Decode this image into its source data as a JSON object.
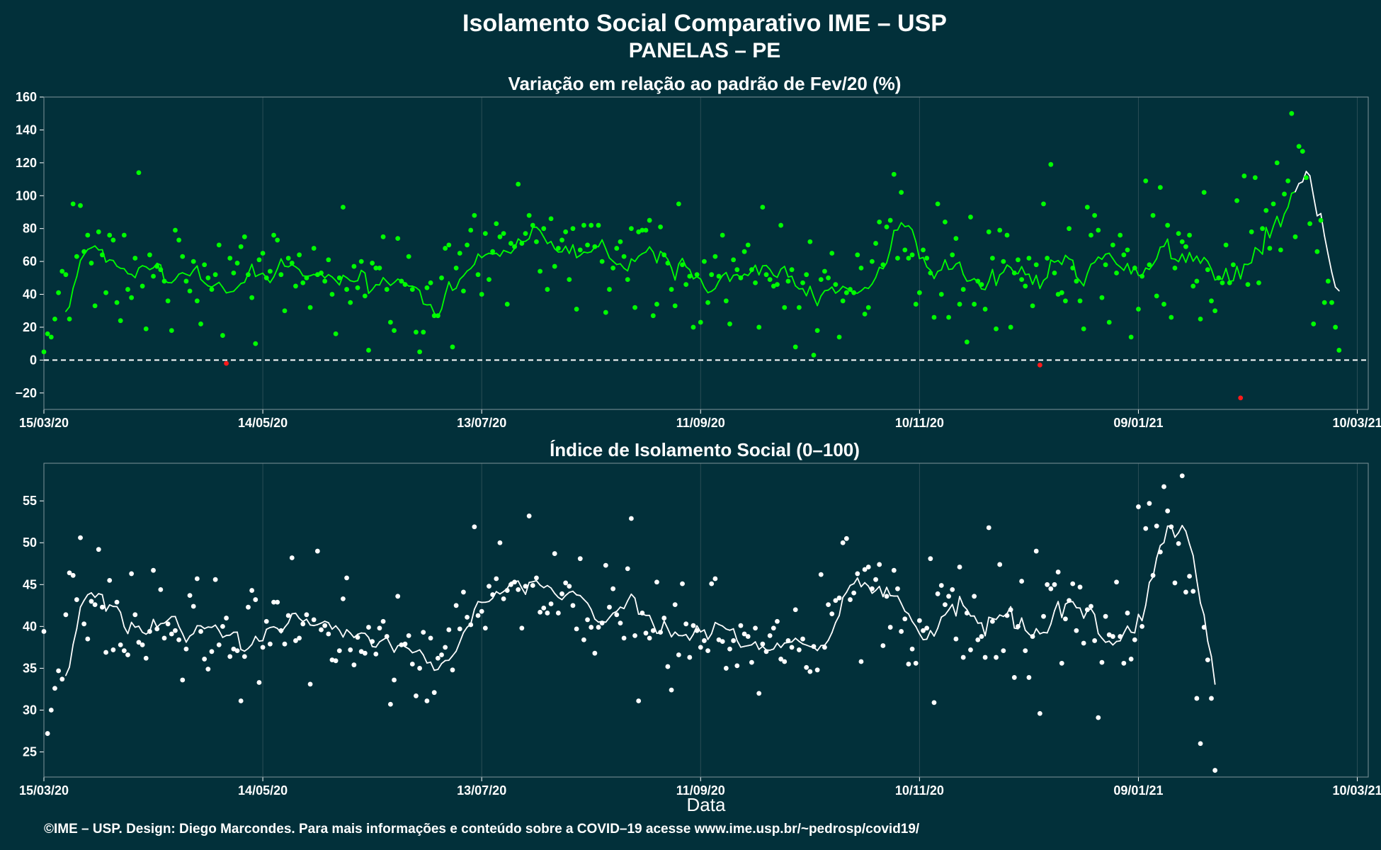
{
  "title": "Isolamento Social Comparativo IME – USP",
  "subtitle": "PANELAS – PE",
  "footer": "©IME – USP. Design: Diego Marcondes. Para mais informações e conteúdo sobre a COVID–19 acesse www.ime.usp.br/~pedrosp/covid19/",
  "colors": {
    "background": "#02303a",
    "positive_points": "#00ff00",
    "negative_points": "#ff1a1a",
    "index_points": "#ffffff",
    "text": "#ffffff",
    "zero_line": "#ffffff"
  },
  "chart_data": [
    {
      "type": "scatter",
      "title": "Variação em relação ao padrão de Fev/20 (%)",
      "xlabel": "",
      "ylabel": "",
      "x_tick_labels": [
        "15/03/20",
        "14/05/20",
        "13/07/20",
        "11/09/20",
        "10/11/20",
        "09/01/21",
        "10/03/21"
      ],
      "x_tick_days": [
        0,
        60,
        120,
        180,
        240,
        300,
        360
      ],
      "ylim": [
        -30,
        160
      ],
      "y_ticks": [
        -20,
        0,
        20,
        40,
        60,
        80,
        100,
        120,
        140,
        160
      ],
      "reference_line": {
        "y": 0,
        "style": "dashed"
      },
      "grid": true,
      "x_range_days": [
        0,
        363
      ],
      "series": [
        {
          "values": [
            5,
            16,
            14,
            25,
            41,
            54,
            52,
            25,
            95,
            63,
            94,
            66,
            76,
            59,
            33,
            78,
            64,
            41,
            76,
            73,
            35,
            24,
            76,
            43,
            38,
            62,
            114,
            45,
            19,
            64,
            51,
            57,
            55,
            48,
            36,
            18,
            79,
            73,
            63,
            48,
            42,
            60,
            36,
            22,
            58,
            50,
            43,
            52,
            70,
            15,
            -2,
            62,
            53,
            59,
            69,
            75,
            52,
            38,
            10,
            61,
            65,
            50,
            54,
            76,
            73,
            52,
            30,
            62,
            59,
            45,
            64,
            47,
            50,
            32,
            68,
            52,
            53,
            48,
            61,
            40,
            16,
            50,
            93,
            43,
            35,
            57,
            44,
            60,
            39,
            6,
            59,
            56,
            56,
            75,
            43,
            23,
            18,
            74,
            48,
            46,
            63,
            43,
            17,
            5,
            17,
            44,
            47,
            27,
            27,
            50,
            68,
            70,
            8,
            56,
            65,
            42,
            70,
            79,
            88,
            52,
            40,
            77,
            49,
            66,
            83,
            75,
            77,
            34,
            71,
            69,
            107,
            71,
            77,
            88,
            82,
            72,
            54,
            80,
            43,
            86,
            57,
            68,
            73,
            78,
            49,
            80,
            31,
            67,
            82,
            70,
            82,
            69,
            82,
            60,
            29,
            43,
            56,
            68,
            72,
            63,
            49,
            80,
            32,
            78,
            79,
            79,
            85,
            27,
            34,
            81,
            64,
            59,
            43,
            33,
            95,
            58,
            46,
            51,
            20,
            52,
            23,
            60,
            35,
            52,
            63,
            51,
            76,
            36,
            22,
            61,
            55,
            50,
            66,
            70,
            55,
            47,
            20,
            93,
            52,
            49,
            45,
            46,
            82,
            32,
            48,
            55,
            8,
            32,
            47,
            52,
            72,
            3,
            18,
            49,
            54,
            50,
            65,
            46,
            14,
            36,
            41,
            43,
            41,
            64,
            56,
            28,
            32,
            60,
            71,
            84,
            58,
            81,
            85,
            113,
            62,
            102,
            67,
            62,
            64,
            34,
            41,
            67,
            62,
            53,
            26,
            95,
            40,
            84,
            26,
            64,
            74,
            34,
            43,
            11,
            87,
            34,
            48,
            46,
            31,
            78,
            62,
            19,
            79,
            60,
            76,
            20,
            53,
            61,
            49,
            45,
            62,
            33,
            58,
            -3,
            95,
            62,
            119,
            53,
            40,
            41,
            36,
            80,
            56,
            48,
            36,
            19,
            93,
            76,
            88,
            79,
            38,
            58,
            23,
            70,
            53,
            76,
            64,
            67,
            14,
            56,
            31,
            51,
            109,
            58,
            88,
            39,
            105,
            34,
            82,
            26,
            56,
            77,
            72,
            69,
            76,
            45,
            48,
            25,
            102,
            55,
            36,
            30,
            50,
            47,
            70,
            47,
            58,
            97,
            -23,
            112,
            46,
            78,
            111,
            47,
            80,
            91,
            68,
            95,
            120,
            67,
            101,
            109,
            150,
            75,
            130,
            127,
            111,
            83,
            22,
            66,
            85,
            35,
            48,
            35,
            20,
            6
          ]
        }
      ]
    },
    {
      "type": "scatter",
      "title": "Índice de Isolamento Social (0–100)",
      "xlabel": "Data",
      "ylabel": "",
      "x_tick_labels": [
        "15/03/20",
        "14/05/20",
        "13/07/20",
        "11/09/20",
        "10/11/20",
        "09/01/21",
        "10/03/21"
      ],
      "x_tick_days": [
        0,
        60,
        120,
        180,
        240,
        300,
        360
      ],
      "ylim": [
        22,
        59.5
      ],
      "y_ticks": [
        25,
        30,
        35,
        40,
        45,
        50,
        55
      ],
      "grid": true,
      "x_range_days": [
        0,
        363
      ],
      "series": [
        {
          "values": [
            39.4,
            27.2,
            30.0,
            32.6,
            34.7,
            33.7,
            41.4,
            46.4,
            46.1,
            43.2,
            50.6,
            40.3,
            38.5,
            43.0,
            42.6,
            49.2,
            42.3,
            36.9,
            45.5,
            37.2,
            42.9,
            37.8,
            37.1,
            36.6,
            46.3,
            41.4,
            38.1,
            37.8,
            36.2,
            39.4,
            46.7,
            39.7,
            44.4,
            38.6,
            40.3,
            39.1,
            39.5,
            38.4,
            33.6,
            37.3,
            43.7,
            42.4,
            45.7,
            39.4,
            36.1,
            34.9,
            37.0,
            45.6,
            37.8,
            40.0,
            41.0,
            36.4,
            37.3,
            37.1,
            31.1,
            36.4,
            42.3,
            44.3,
            43.2,
            33.3,
            37.5,
            40.6,
            37.9,
            42.9,
            42.9,
            39.5,
            37.9,
            41.3,
            48.2,
            38.3,
            38.6,
            40.3,
            41.4,
            33.1,
            40.8,
            49.0,
            39.6,
            40.1,
            39.1,
            36.0,
            35.9,
            37.1,
            43.3,
            45.8,
            37.2,
            35.4,
            38.7,
            37.0,
            36.8,
            39.9,
            38.2,
            36.7,
            39.8,
            40.6,
            38.8,
            30.7,
            33.6,
            43.6,
            37.8,
            37.9,
            38.9,
            35.5,
            31.7,
            35.0,
            39.3,
            31.1,
            38.6,
            32.1,
            36.2,
            36.6,
            37.5,
            39.6,
            34.8,
            42.5,
            39.7,
            44.1,
            41.1,
            40.2,
            51.9,
            41.3,
            41.8,
            39.8,
            44.8,
            43.8,
            45.7,
            50.0,
            43.3,
            44.3,
            45.0,
            45.3,
            44.4,
            39.8,
            44.8,
            53.2,
            44.9,
            45.8,
            41.7,
            42.2,
            41.6,
            42.7,
            48.7,
            41.6,
            43.9,
            45.2,
            44.8,
            42.5,
            39.7,
            48.1,
            38.4,
            40.8,
            39.9,
            36.8,
            39.9,
            40.4,
            47.3,
            42.3,
            44.5,
            41.4,
            40.4,
            38.6,
            46.9,
            52.9,
            38.9,
            31.1,
            41.6,
            39.2,
            38.6,
            39.5,
            45.3,
            39.3,
            41.0,
            35.2,
            32.4,
            42.6,
            36.6,
            45.1,
            40.3,
            36.3,
            40.1,
            39.5,
            37.5,
            38.3,
            37.1,
            45.1,
            45.7,
            38.4,
            38.2,
            35.0,
            37.3,
            38.3,
            35.3,
            40.1,
            39.1,
            38.8,
            35.7,
            39.8,
            32.0,
            37.9,
            37.0,
            38.9,
            39.8,
            40.6,
            36.1,
            35.8,
            38.3,
            37.5,
            42.0,
            37.2,
            38.5,
            35.1,
            34.6,
            37.6,
            34.8,
            46.2,
            37.5,
            42.6,
            41.5,
            43.1,
            43.4,
            50.0,
            50.5,
            43.2,
            44.0,
            46.3,
            35.8,
            46.8,
            47.1,
            44.5,
            45.6,
            47.4,
            37.7,
            43.6,
            39.9,
            46.7,
            44.5,
            39.4,
            40.9,
            35.5,
            37.3,
            35.6,
            40.7,
            39.5,
            39.8,
            48.1,
            30.9,
            43.9,
            44.9,
            42.6,
            43.6,
            44.4,
            38.5,
            47.1,
            36.3,
            41.6,
            37.2,
            43.6,
            38.4,
            38.8,
            36.3,
            51.8,
            40.6,
            36.3,
            47.4,
            37.1,
            41.3,
            42.0,
            33.9,
            40.0,
            45.4,
            37.1,
            33.9,
            38.8,
            49.0,
            29.6,
            41.2,
            45.0,
            44.5,
            45.0,
            46.5,
            35.6,
            40.9,
            43.1,
            45.1,
            39.5,
            44.7,
            38.0,
            42.0,
            42.4,
            38.3,
            29.1,
            35.7,
            41.2,
            39.0,
            38.8,
            45.3,
            38.8,
            35.6,
            41.6,
            36.1,
            38.4,
            54.3,
            40.0,
            51.7,
            54.7,
            46.1,
            52.0,
            48.9,
            56.7,
            53.8,
            51.9,
            45.2,
            49.9,
            58.0,
            44.1,
            46.0,
            44.2,
            31.4,
            26.0,
            39.9,
            36.0,
            31.4,
            22.8
          ]
        }
      ]
    }
  ]
}
